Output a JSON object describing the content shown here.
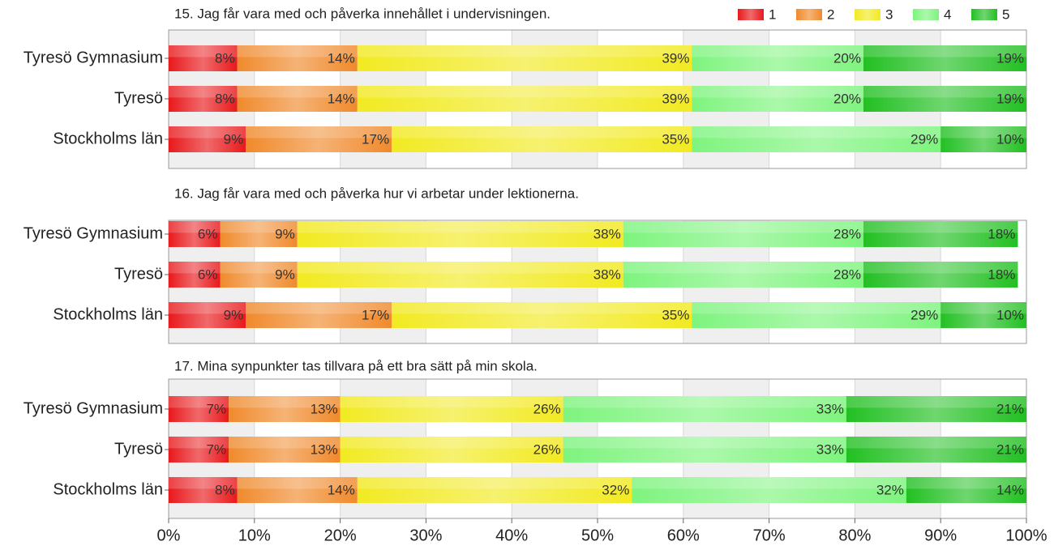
{
  "chart_data": [
    {
      "type": "stacked-barh",
      "title": "15. Jag får vara med och påverka innehållet i undervisningen.",
      "categories": [
        "Tyresö Gymnasium",
        "Tyresö",
        "Stockholms län"
      ],
      "legend": "top-right",
      "xlim": [
        0,
        100
      ],
      "series": [
        {
          "name": "1",
          "color": "#e8191c",
          "values": [
            8,
            8,
            9
          ],
          "value_labels": [
            "8%",
            "8%",
            "9%"
          ]
        },
        {
          "name": "2",
          "color": "#f08a2c",
          "values": [
            14,
            14,
            17
          ],
          "value_labels": [
            "14%",
            "14%",
            "17%"
          ]
        },
        {
          "name": "3",
          "color": "#f2ea22",
          "values": [
            39,
            39,
            35
          ],
          "value_labels": [
            "39%",
            "39%",
            "35%"
          ]
        },
        {
          "name": "4",
          "color": "#7ef47e",
          "values": [
            20,
            20,
            29
          ],
          "value_labels": [
            "20%",
            "20%",
            "29%"
          ]
        },
        {
          "name": "5",
          "color": "#22c022",
          "values": [
            19,
            19,
            10
          ],
          "value_labels": [
            "19%",
            "19%",
            "10%"
          ]
        }
      ]
    },
    {
      "type": "stacked-barh",
      "title": "16. Jag får vara med och påverka hur vi arbetar under lektionerna.",
      "categories": [
        "Tyresö Gymnasium",
        "Tyresö",
        "Stockholms län"
      ],
      "xlim": [
        0,
        100
      ],
      "series": [
        {
          "color": "#e8191c",
          "values": [
            6,
            6,
            9
          ],
          "value_labels": [
            "6%",
            "6%",
            "9%"
          ]
        },
        {
          "color": "#f08a2c",
          "values": [
            9,
            9,
            17
          ],
          "value_labels": [
            "9%",
            "9%",
            "17%"
          ]
        },
        {
          "color": "#f2ea22",
          "values": [
            38,
            38,
            35
          ],
          "value_labels": [
            "38%",
            "38%",
            "35%"
          ]
        },
        {
          "color": "#7ef47e",
          "values": [
            28,
            28,
            29
          ],
          "value_labels": [
            "28%",
            "28%",
            "29%"
          ]
        },
        {
          "color": "#22c022",
          "values": [
            18,
            18,
            10
          ],
          "value_labels": [
            "18%",
            "18%",
            "10%"
          ]
        }
      ]
    },
    {
      "type": "stacked-barh",
      "title": "17. Mina synpunkter tas tillvara på ett bra sätt på min skola.",
      "categories": [
        "Tyresö Gymnasium",
        "Tyresö",
        "Stockholms län"
      ],
      "xlim": [
        0,
        100
      ],
      "xticks": [
        {
          "value": 0,
          "label": "0%"
        },
        {
          "value": 10,
          "label": "10%"
        },
        {
          "value": 20,
          "label": "20%"
        },
        {
          "value": 30,
          "label": "30%"
        },
        {
          "value": 40,
          "label": "40%"
        },
        {
          "value": 50,
          "label": "50%"
        },
        {
          "value": 60,
          "label": "60%"
        },
        {
          "value": 70,
          "label": "70%"
        },
        {
          "value": 80,
          "label": "80%"
        },
        {
          "value": 90,
          "label": "90%"
        },
        {
          "value": 100,
          "label": "100%"
        }
      ],
      "series": [
        {
          "color": "#e8191c",
          "values": [
            7,
            7,
            8
          ],
          "value_labels": [
            "7%",
            "7%",
            "8%"
          ]
        },
        {
          "color": "#f08a2c",
          "values": [
            13,
            13,
            14
          ],
          "value_labels": [
            "13%",
            "13%",
            "14%"
          ]
        },
        {
          "color": "#f2ea22",
          "values": [
            26,
            26,
            32
          ],
          "value_labels": [
            "26%",
            "26%",
            "32%"
          ]
        },
        {
          "color": "#7ef47e",
          "values": [
            33,
            33,
            32
          ],
          "value_labels": [
            "33%",
            "33%",
            "32%"
          ]
        },
        {
          "color": "#22c022",
          "values": [
            21,
            21,
            14
          ],
          "value_labels": [
            "21%",
            "21%",
            "14%"
          ]
        }
      ]
    }
  ]
}
